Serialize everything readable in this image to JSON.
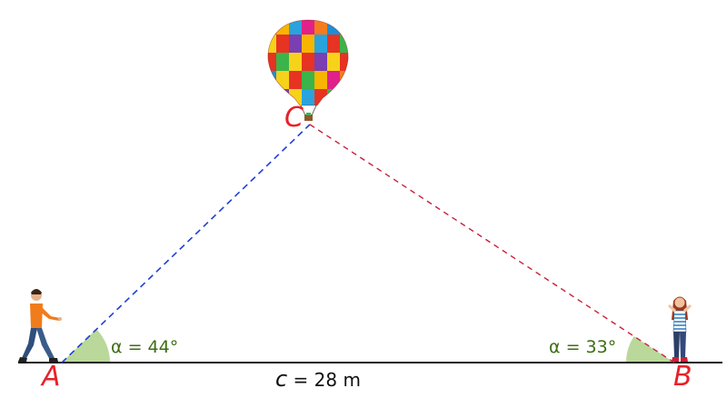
{
  "diagram": {
    "vertices": {
      "a": "A",
      "b": "B",
      "c": "C"
    },
    "angle_a": "α = 44°",
    "angle_b": "α = 33°",
    "side_c": {
      "variable": "c",
      "value": " = 28 m"
    }
  },
  "colors": {
    "ground": "#1a1a1a",
    "line_ac": "#1f3fd6",
    "line_bc": "#c8203a",
    "angle_fill": "#b9d89a",
    "vertex_label": "#e8202a",
    "angle_text": "#3c6e12"
  },
  "icons": [
    "hot-air-balloon-icon",
    "walking-man-icon",
    "waving-woman-icon"
  ]
}
